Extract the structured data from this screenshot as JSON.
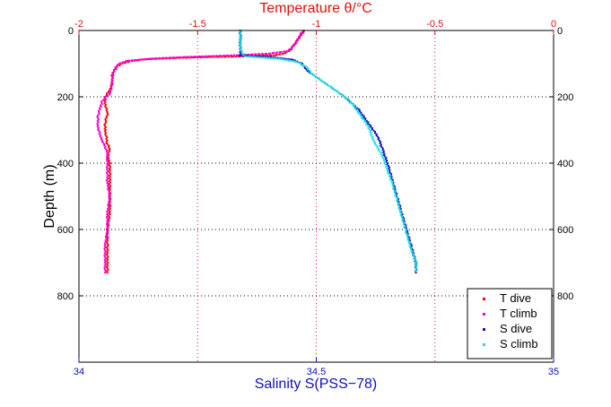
{
  "chart_data": {
    "type": "scatter",
    "top_axis": {
      "label": "Temperature θ/°C",
      "ticks": [
        "-2",
        "-1.5",
        "-1",
        "-0.5",
        "0"
      ],
      "tick_values": [
        -2,
        -1.5,
        -1,
        -0.5,
        0
      ],
      "range": [
        -2,
        0
      ]
    },
    "bottom_axis": {
      "label": "Salinity S(PSS−78)",
      "ticks": [
        "34",
        "34.5",
        "35"
      ],
      "tick_values": [
        34,
        34.5,
        35
      ],
      "range": [
        34,
        35
      ],
      "grid_values": [
        34.25,
        34.5,
        34.75
      ]
    },
    "y_axis": {
      "label": "Depth (m)",
      "ticks": [
        "0",
        "200",
        "400",
        "600",
        "800"
      ],
      "tick_values": [
        0,
        200,
        400,
        600,
        800
      ],
      "range": [
        0,
        1000
      ],
      "reversed": true
    },
    "grid": true,
    "legend_position": "bottom-right",
    "series": [
      {
        "name": "T dive",
        "axis": "top",
        "color": "#ff0000",
        "points": [
          [
            -1.05,
            0
          ],
          [
            -1.06,
            10
          ],
          [
            -1.07,
            20
          ],
          [
            -1.08,
            30
          ],
          [
            -1.09,
            40
          ],
          [
            -1.1,
            50
          ],
          [
            -1.11,
            60
          ],
          [
            -1.14,
            70
          ],
          [
            -1.18,
            75
          ],
          [
            -1.3,
            78
          ],
          [
            -1.45,
            80
          ],
          [
            -1.6,
            83
          ],
          [
            -1.72,
            87
          ],
          [
            -1.78,
            92
          ],
          [
            -1.82,
            100
          ],
          [
            -1.84,
            110
          ],
          [
            -1.85,
            120
          ],
          [
            -1.86,
            140
          ],
          [
            -1.86,
            160
          ],
          [
            -1.87,
            180
          ],
          [
            -1.89,
            200
          ],
          [
            -1.89,
            220
          ],
          [
            -1.88,
            250
          ],
          [
            -1.89,
            280
          ],
          [
            -1.89,
            300
          ],
          [
            -1.88,
            340
          ],
          [
            -1.87,
            360
          ],
          [
            -1.88,
            380
          ],
          [
            -1.87,
            400
          ],
          [
            -1.87,
            450
          ],
          [
            -1.87,
            500
          ],
          [
            -1.87,
            550
          ],
          [
            -1.88,
            600
          ],
          [
            -1.88,
            650
          ],
          [
            -1.88,
            700
          ],
          [
            -1.88,
            730
          ]
        ]
      },
      {
        "name": "T climb",
        "axis": "top",
        "color": "#ff00cc",
        "points": [
          [
            -1.06,
            5
          ],
          [
            -1.07,
            15
          ],
          [
            -1.08,
            30
          ],
          [
            -1.1,
            50
          ],
          [
            -1.12,
            62
          ],
          [
            -1.2,
            70
          ],
          [
            -1.35,
            75
          ],
          [
            -1.55,
            80
          ],
          [
            -1.7,
            85
          ],
          [
            -1.8,
            92
          ],
          [
            -1.83,
            100
          ],
          [
            -1.85,
            115
          ],
          [
            -1.86,
            135
          ],
          [
            -1.86,
            160
          ],
          [
            -1.87,
            190
          ],
          [
            -1.9,
            210
          ],
          [
            -1.91,
            230
          ],
          [
            -1.92,
            260
          ],
          [
            -1.92,
            290
          ],
          [
            -1.91,
            320
          ],
          [
            -1.89,
            350
          ],
          [
            -1.88,
            370
          ],
          [
            -1.88,
            390
          ],
          [
            -1.88,
            420
          ],
          [
            -1.88,
            460
          ],
          [
            -1.87,
            500
          ],
          [
            -1.88,
            550
          ],
          [
            -1.88,
            600
          ],
          [
            -1.89,
            650
          ],
          [
            -1.89,
            700
          ],
          [
            -1.89,
            730
          ]
        ]
      },
      {
        "name": "S dive",
        "axis": "bottom",
        "color": "#1010c8",
        "points": [
          [
            34.34,
            0
          ],
          [
            34.34,
            20
          ],
          [
            34.34,
            40
          ],
          [
            34.34,
            60
          ],
          [
            34.34,
            75
          ],
          [
            34.4,
            80
          ],
          [
            34.45,
            88
          ],
          [
            34.47,
            100
          ],
          [
            34.48,
            120
          ],
          [
            34.5,
            140
          ],
          [
            34.52,
            160
          ],
          [
            34.54,
            180
          ],
          [
            34.56,
            200
          ],
          [
            34.59,
            240
          ],
          [
            34.61,
            280
          ],
          [
            34.63,
            320
          ],
          [
            34.64,
            360
          ],
          [
            34.65,
            400
          ],
          [
            34.66,
            450
          ],
          [
            34.67,
            500
          ],
          [
            34.68,
            550
          ],
          [
            34.69,
            600
          ],
          [
            34.7,
            650
          ],
          [
            34.71,
            700
          ],
          [
            34.71,
            730
          ]
        ]
      },
      {
        "name": "S climb",
        "axis": "bottom",
        "color": "#20e0e0",
        "points": [
          [
            34.34,
            0
          ],
          [
            34.34,
            20
          ],
          [
            34.34,
            40
          ],
          [
            34.34,
            60
          ],
          [
            34.35,
            78
          ],
          [
            34.42,
            85
          ],
          [
            34.46,
            95
          ],
          [
            34.48,
            110
          ],
          [
            34.49,
            130
          ],
          [
            34.51,
            150
          ],
          [
            34.53,
            170
          ],
          [
            34.55,
            190
          ],
          [
            34.57,
            210
          ],
          [
            34.59,
            250
          ],
          [
            34.61,
            290
          ],
          [
            34.62,
            330
          ],
          [
            34.64,
            380
          ],
          [
            34.65,
            420
          ],
          [
            34.66,
            460
          ],
          [
            34.67,
            510
          ],
          [
            34.68,
            560
          ],
          [
            34.69,
            610
          ],
          [
            34.7,
            660
          ],
          [
            34.71,
            700
          ],
          [
            34.71,
            725
          ]
        ]
      }
    ]
  }
}
